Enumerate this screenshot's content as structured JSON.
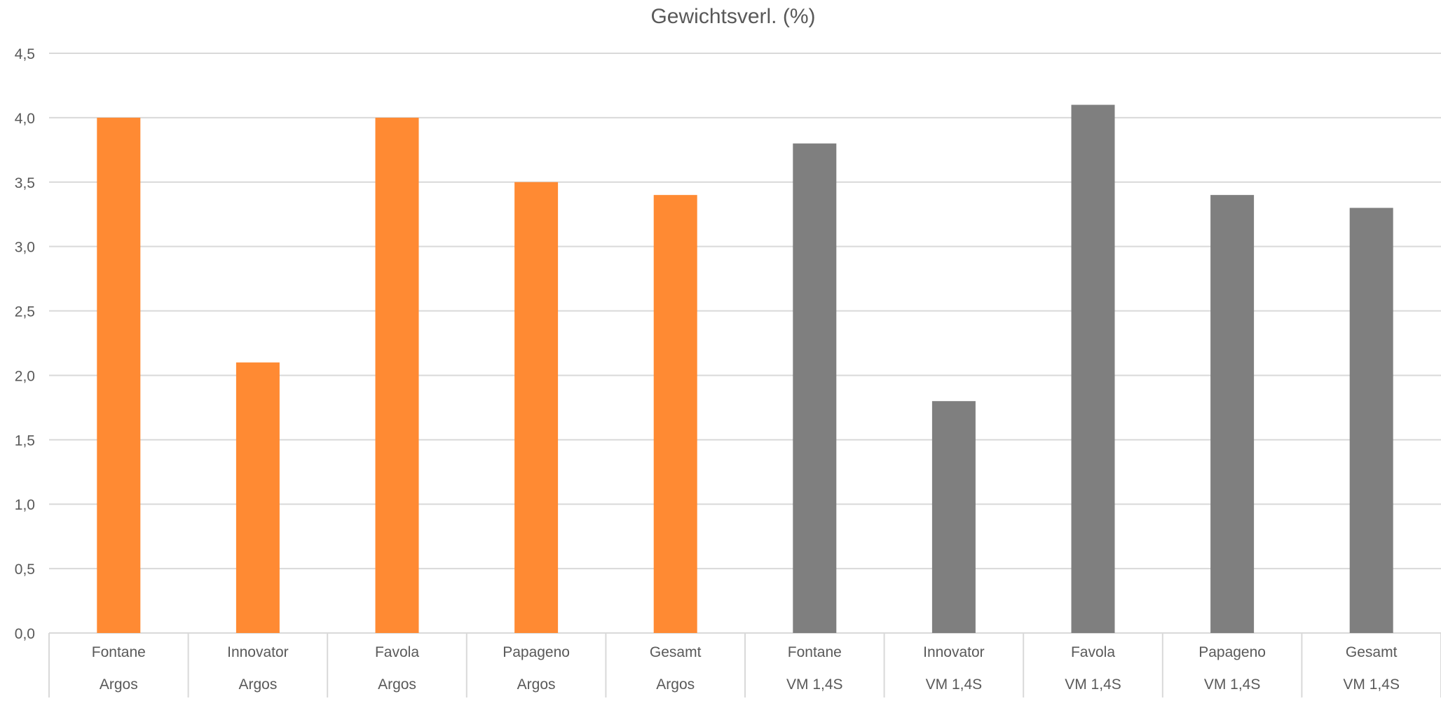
{
  "chart_data": {
    "type": "bar",
    "title": "Gewichtsverl. (%)",
    "xlabel": "",
    "ylabel": "",
    "ylim": [
      0,
      4.5
    ],
    "ytick_step": 0.5,
    "y_tick_labels": [
      "0,0",
      "0,5",
      "1,0",
      "1,5",
      "2,0",
      "2,5",
      "3,0",
      "3,5",
      "4,0",
      "4,5"
    ],
    "grid": true,
    "legend": "none",
    "groups": [
      {
        "name": "Argos",
        "color": "#FF8A33",
        "categories": [
          "Fontane",
          "Innovator",
          "Favola",
          "Papageno",
          "Gesamt"
        ],
        "values": [
          4.0,
          2.1,
          4.0,
          3.5,
          3.4
        ]
      },
      {
        "name": "VM 1,4S",
        "color": "#7F7F7F",
        "categories": [
          "Fontane",
          "Innovator",
          "Favola",
          "Papageno",
          "Gesamt"
        ],
        "values": [
          3.8,
          1.8,
          4.1,
          3.4,
          3.3
        ]
      }
    ]
  }
}
